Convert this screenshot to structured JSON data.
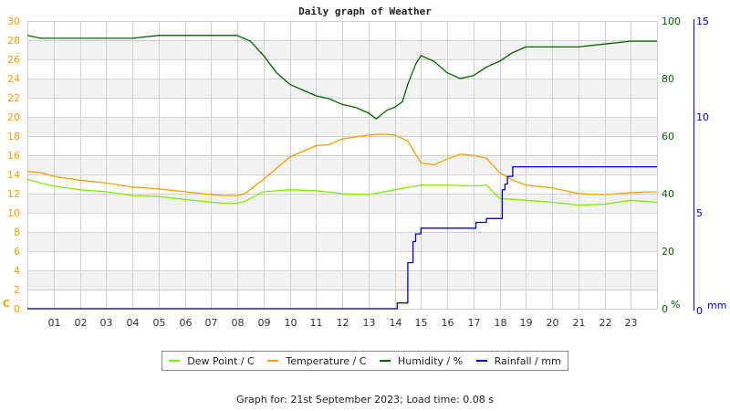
{
  "chart_data": {
    "type": "line",
    "title": "Daily graph of Weather",
    "xlabel": "",
    "x_ticks": [
      "01",
      "02",
      "03",
      "04",
      "05",
      "06",
      "07",
      "08",
      "09",
      "10",
      "11",
      "12",
      "13",
      "14",
      "15",
      "16",
      "17",
      "18",
      "19",
      "20",
      "21",
      "22",
      "23"
    ],
    "axes": {
      "left": {
        "label": "C",
        "min": 0,
        "max": 30,
        "ticks": [
          0,
          2,
          4,
          6,
          8,
          10,
          12,
          14,
          16,
          18,
          20,
          22,
          24,
          26,
          28,
          30
        ],
        "color": "#f5a000"
      },
      "right_humidity": {
        "label": "%",
        "min": 0,
        "max": 100,
        "ticks": [
          0,
          20,
          40,
          60,
          80,
          100
        ],
        "color": "#006400"
      },
      "right_rain": {
        "label": "mm",
        "min": 0,
        "max": 15,
        "ticks": [
          0,
          5,
          10,
          15
        ],
        "color": "#0000cc"
      }
    },
    "grid": true,
    "legend_position": "bottom",
    "series": [
      {
        "name": "Dew Point / C",
        "axis": "left",
        "color": "#80ee00",
        "x": [
          0,
          0.5,
          1,
          2,
          3,
          4,
          5,
          6,
          7,
          7.5,
          8,
          8.3,
          9,
          10,
          11,
          12,
          13,
          14,
          15,
          16,
          17,
          17.5,
          18,
          19,
          20,
          21,
          22,
          23,
          24
        ],
        "values": [
          13.5,
          13.1,
          12.8,
          12.4,
          12.2,
          11.8,
          11.7,
          11.4,
          11.1,
          11.0,
          11.0,
          11.2,
          12.2,
          12.4,
          12.3,
          12.0,
          11.9,
          12.4,
          12.9,
          12.9,
          12.8,
          12.9,
          11.5,
          11.3,
          11.1,
          10.8,
          10.9,
          11.3,
          11.1
        ]
      },
      {
        "name": "Temperature / C",
        "axis": "left",
        "color": "#f5a000",
        "x": [
          0,
          0.5,
          1,
          2,
          3,
          4,
          5,
          6,
          7,
          7.5,
          8,
          8.3,
          9,
          10,
          11,
          11.5,
          12,
          13,
          13.5,
          14,
          14.5,
          15,
          15.5,
          16,
          16.5,
          17,
          17.5,
          18,
          18.5,
          19,
          20,
          21,
          22,
          23,
          24
        ],
        "values": [
          14.3,
          14.2,
          13.8,
          13.4,
          13.1,
          12.7,
          12.5,
          12.2,
          11.9,
          11.8,
          11.8,
          12.0,
          13.5,
          15.8,
          17.0,
          17.1,
          17.7,
          18.1,
          18.2,
          18.1,
          17.5,
          15.2,
          15.0,
          15.6,
          16.1,
          16.0,
          15.7,
          14.2,
          13.4,
          12.9,
          12.6,
          12.0,
          11.9,
          12.1,
          12.2
        ]
      },
      {
        "name": "Humidity / %",
        "axis": "right_humidity",
        "color": "#006400",
        "x": [
          0,
          0.5,
          1,
          2,
          3,
          4,
          5,
          6,
          7,
          8,
          8.5,
          9,
          9.5,
          10,
          10.5,
          11,
          11.5,
          12,
          12.5,
          13,
          13.3,
          13.7,
          14,
          14.3,
          14.5,
          14.8,
          15,
          15.5,
          16,
          16.5,
          17,
          17.5,
          18,
          18.5,
          19,
          20,
          21,
          22,
          23,
          24
        ],
        "values": [
          95,
          94,
          94,
          94,
          94,
          94,
          95,
          95,
          95,
          95,
          93,
          88,
          82,
          78,
          76,
          74,
          73,
          71,
          70,
          68,
          66,
          69,
          70,
          72,
          78,
          85,
          88,
          86,
          82,
          80,
          81,
          84,
          86,
          89,
          91,
          91,
          91,
          92,
          93,
          93
        ]
      },
      {
        "name": "Rainfall / mm",
        "axis": "right_rain",
        "color": "#0000cc",
        "x": [
          0,
          14,
          14.1,
          14.4,
          14.5,
          14.7,
          14.8,
          15,
          16,
          17,
          17.1,
          17.4,
          17.5,
          18,
          18.1,
          18.2,
          18.3,
          18.5,
          19,
          24
        ],
        "values": [
          0,
          0,
          0.3,
          0.3,
          2.4,
          3.5,
          3.9,
          4.2,
          4.2,
          4.2,
          4.5,
          4.5,
          4.7,
          4.7,
          6.2,
          6.5,
          6.9,
          7.4,
          7.4,
          7.4
        ]
      }
    ]
  },
  "legend": {
    "items": [
      {
        "label": "Dew Point / C",
        "color": "#80ee00"
      },
      {
        "label": "Temperature / C",
        "color": "#f5a000"
      },
      {
        "label": "Humidity / %",
        "color": "#006400"
      },
      {
        "label": "Rainfall / mm",
        "color": "#0000cc"
      }
    ]
  },
  "footer": "Graph for: 21st September 2023; Load time: 0.08 s"
}
